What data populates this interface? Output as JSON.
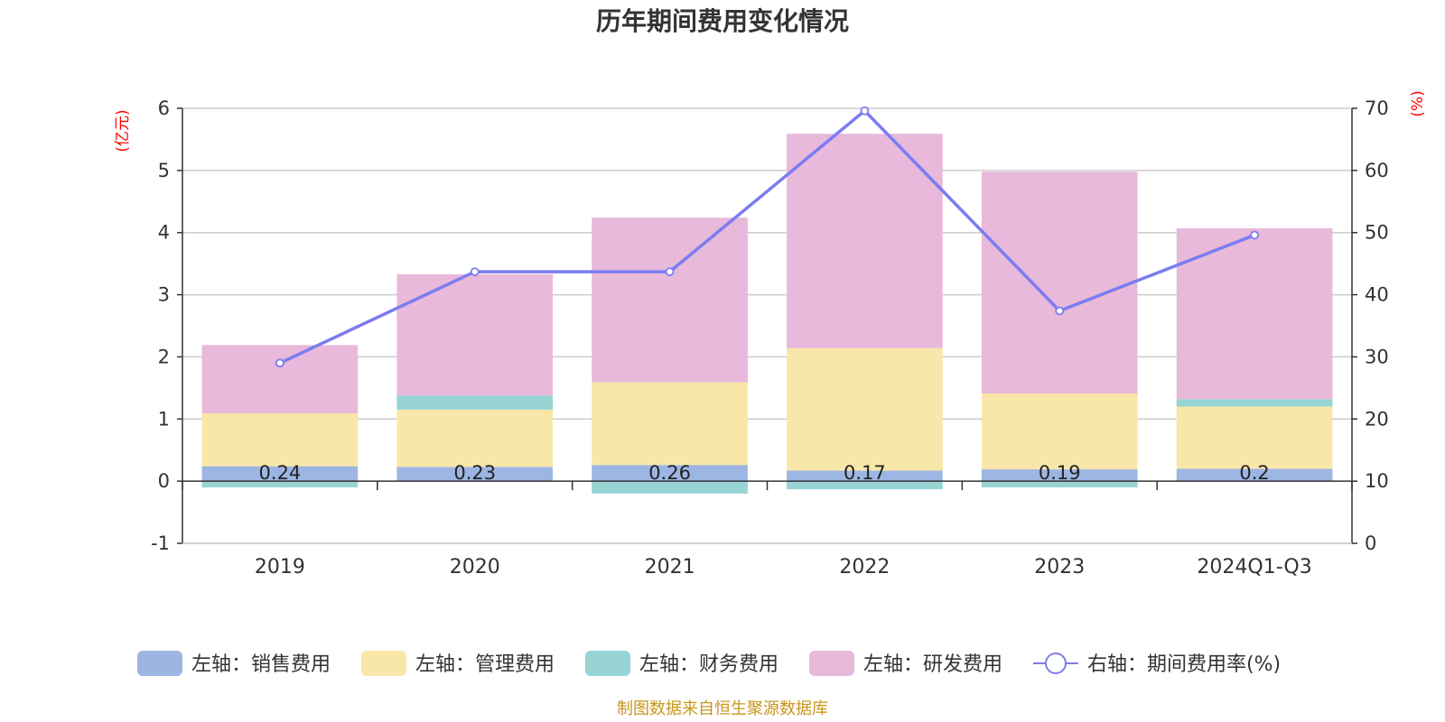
{
  "chart_data": {
    "type": "bar",
    "title": "历年期间费用变化情况",
    "categories": [
      "2019",
      "2020",
      "2021",
      "2022",
      "2023",
      "2024Q1-Q3"
    ],
    "left_axis": {
      "unit": "(亿元)",
      "ylim": [
        -1,
        6
      ],
      "ticks": [
        -1,
        0,
        1,
        2,
        3,
        4,
        5,
        6
      ]
    },
    "right_axis": {
      "unit": "(%)",
      "ylim": [
        0,
        70
      ],
      "ticks": [
        0,
        10,
        20,
        30,
        40,
        50,
        60,
        70
      ]
    },
    "series": [
      {
        "name": "左轴：销售费用",
        "type": "bar",
        "axis": "left",
        "color": "#9db5e3",
        "values": [
          0.24,
          0.23,
          0.26,
          0.17,
          0.19,
          0.2
        ],
        "labels": [
          "0.24",
          "0.23",
          "0.26",
          "0.17",
          "0.19",
          "0.2"
        ]
      },
      {
        "name": "左轴：管理费用",
        "type": "bar",
        "axis": "left",
        "color": "#f8e7a8",
        "values": [
          0.85,
          0.92,
          1.33,
          1.97,
          1.22,
          1.0
        ]
      },
      {
        "name": "左轴：财务费用",
        "type": "bar",
        "axis": "left",
        "color": "#98d4d4",
        "values": [
          -0.1,
          0.23,
          -0.2,
          -0.13,
          -0.1,
          0.12
        ]
      },
      {
        "name": "左轴：研发费用",
        "type": "bar",
        "axis": "left",
        "color": "#e8b9da",
        "values": [
          1.1,
          1.95,
          2.65,
          3.45,
          3.57,
          2.75
        ]
      },
      {
        "name": "右轴：期间费用率(%)",
        "type": "line",
        "axis": "right",
        "color": "#7b7cf0",
        "values": [
          29.0,
          43.7,
          43.7,
          69.6,
          37.4,
          49.6
        ]
      }
    ],
    "grid": true,
    "legend_position": "bottom"
  },
  "footer": {
    "source": "制图数据来自恒生聚源数据库"
  }
}
